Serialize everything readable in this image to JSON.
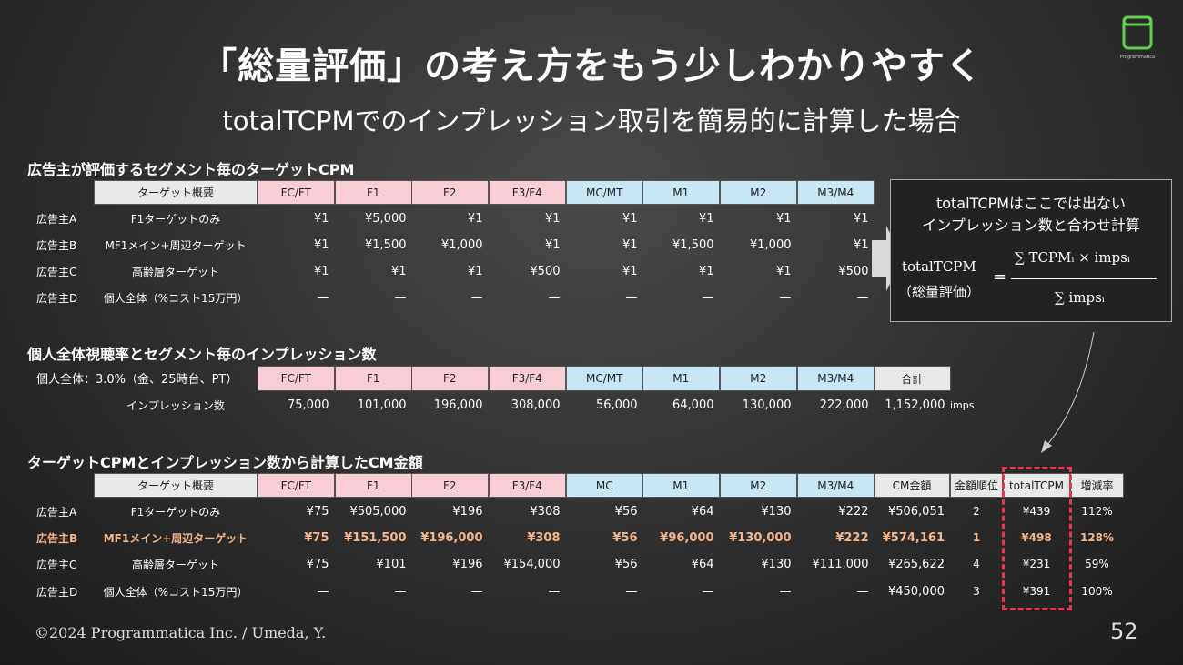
{
  "title": "「総量評価」の考え方をもう少しわかりやすく",
  "subtitle": "totalTCPMでのインプレッション取引を簡易的に計算した場合",
  "logo": {
    "text": "Programmatica",
    "color": "#5fd34a"
  },
  "colors": {
    "pink": "#f9cdd5",
    "blue": "#c8e7f5",
    "gray": "#e8e8e8",
    "highlight": "#f5b58a",
    "dash": "#e8344e"
  },
  "section1": {
    "title": "広告主が評価するセグメント毎のターゲットCPM",
    "headers": [
      "ターゲット概要",
      "FC/FT",
      "F1",
      "F2",
      "F3/F4",
      "MC/MT",
      "M1",
      "M2",
      "M3/M4"
    ],
    "rows": [
      {
        "advertiser": "広告主A",
        "target": "F1ターゲットのみ",
        "values": [
          "¥1",
          "¥5,000",
          "¥1",
          "¥1",
          "¥1",
          "¥1",
          "¥1",
          "¥1"
        ]
      },
      {
        "advertiser": "広告主B",
        "target": "MF1メイン+周辺ターゲット",
        "values": [
          "¥1",
          "¥1,500",
          "¥1,000",
          "¥1",
          "¥1",
          "¥1,500",
          "¥1,000",
          "¥1"
        ]
      },
      {
        "advertiser": "広告主C",
        "target": "高齢層ターゲット",
        "values": [
          "¥1",
          "¥1",
          "¥1",
          "¥500",
          "¥1",
          "¥1",
          "¥1",
          "¥500"
        ]
      },
      {
        "advertiser": "広告主D",
        "target": "個人全体（%コスト15万円）",
        "values": [
          "—",
          "—",
          "—",
          "—",
          "—",
          "—",
          "—",
          "—"
        ]
      }
    ]
  },
  "formula_box": {
    "line1": "totalTCPMはここでは出ない",
    "line2": "インプレッション数と合わせ計算",
    "lhs1": "totalTCPM",
    "lhs2": "（総量評価）",
    "eq": "=",
    "numerator": "∑ TCPMᵢ × impsᵢ",
    "denominator": "∑ impsᵢ"
  },
  "section2": {
    "title": "個人全体視聴率とセグメント毎のインプレッション数",
    "rating_label": "個人全体：3.0%（金、25時台、PT）",
    "headers": [
      "FC/FT",
      "F1",
      "F2",
      "F3/F4",
      "MC/MT",
      "M1",
      "M2",
      "M3/M4",
      "合計"
    ],
    "row_label": "インプレッション数",
    "values": [
      "75,000",
      "101,000",
      "196,000",
      "308,000",
      "56,000",
      "64,000",
      "130,000",
      "222,000",
      "1,152,000"
    ],
    "unit": "imps"
  },
  "section3": {
    "title": "ターゲットCPMとインプレッション数から計算したCM金額",
    "headers": [
      "ターゲット概要",
      "FC/FT",
      "F1",
      "F2",
      "F3/F4",
      "MC",
      "M1",
      "M2",
      "M3/M4",
      "CM金額",
      "金額順位",
      "totalTCPM",
      "増減率"
    ],
    "rows": [
      {
        "advertiser": "広告主A",
        "target": "F1ターゲットのみ",
        "values": [
          "¥75",
          "¥505,000",
          "¥196",
          "¥308",
          "¥56",
          "¥64",
          "¥130",
          "¥222",
          "¥506,051",
          "2",
          "¥439",
          "112%"
        ]
      },
      {
        "advertiser": "広告主B",
        "target": "MF1メイン+周辺ターゲット",
        "highlight": true,
        "values": [
          "¥75",
          "¥151,500",
          "¥196,000",
          "¥308",
          "¥56",
          "¥96,000",
          "¥130,000",
          "¥222",
          "¥574,161",
          "1",
          "¥498",
          "128%"
        ]
      },
      {
        "advertiser": "広告主C",
        "target": "高齢層ターゲット",
        "values": [
          "¥75",
          "¥101",
          "¥196",
          "¥154,000",
          "¥56",
          "¥64",
          "¥130",
          "¥111,000",
          "¥265,622",
          "4",
          "¥231",
          "59%"
        ]
      },
      {
        "advertiser": "広告主D",
        "target": "個人全体（%コスト15万円）",
        "values": [
          "—",
          "—",
          "—",
          "—",
          "—",
          "—",
          "—",
          "—",
          "¥450,000",
          "3",
          "¥391",
          "100%"
        ]
      }
    ]
  },
  "footer": {
    "copyright": "©2024  Programmatica Inc. / Umeda, Y.",
    "page": "52"
  }
}
